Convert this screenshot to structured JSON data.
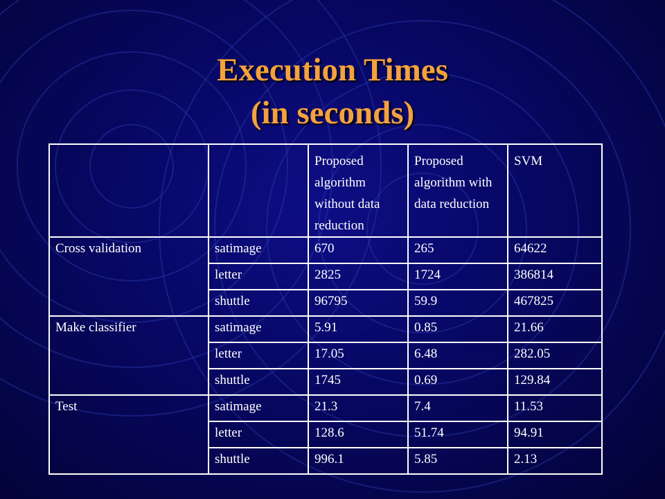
{
  "slide": {
    "title_line1": "Execution Times",
    "title_line2": "(in seconds)"
  },
  "table": {
    "headers": [
      "",
      "",
      "Proposed algorithm without data reduction",
      "Proposed algorithm with data reduction",
      "SVM"
    ],
    "groups": [
      {
        "label": "Cross validation",
        "rows": [
          {
            "dataset": "satimage",
            "no_reduction": "670",
            "with_reduction": "265",
            "svm": "64622"
          },
          {
            "dataset": "letter",
            "no_reduction": "2825",
            "with_reduction": "1724",
            "svm": "386814"
          },
          {
            "dataset": "shuttle",
            "no_reduction": "96795",
            "with_reduction": "59.9",
            "svm": "467825"
          }
        ]
      },
      {
        "label": "Make classifier",
        "rows": [
          {
            "dataset": "satimage",
            "no_reduction": "5.91",
            "with_reduction": "0.85",
            "svm": "21.66"
          },
          {
            "dataset": "letter",
            "no_reduction": "17.05",
            "with_reduction": "6.48",
            "svm": "282.05"
          },
          {
            "dataset": "shuttle",
            "no_reduction": "1745",
            "with_reduction": "0.69",
            "svm": "129.84"
          }
        ]
      },
      {
        "label": "Test",
        "rows": [
          {
            "dataset": "satimage",
            "no_reduction": "21.3",
            "with_reduction": "7.4",
            "svm": "11.53"
          },
          {
            "dataset": "letter",
            "no_reduction": "128.6",
            "with_reduction": "51.74",
            "svm": "94.91"
          },
          {
            "dataset": "shuttle",
            "no_reduction": "996.1",
            "with_reduction": "5.85",
            "svm": "2.13"
          }
        ]
      }
    ]
  },
  "colors": {
    "background": "#08086a",
    "title": "#f4a13f",
    "table_text": "#ffffff",
    "rings": "#2a3aa8"
  }
}
